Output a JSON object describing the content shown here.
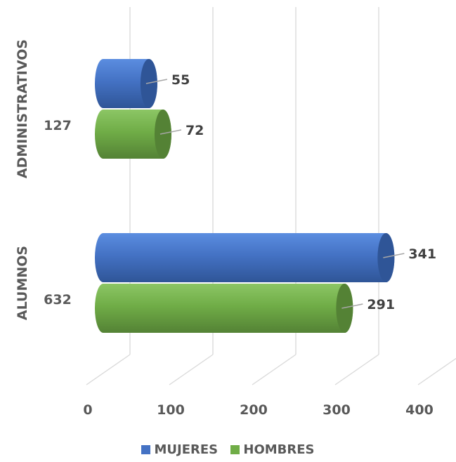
{
  "chart_data": {
    "type": "bar",
    "orientation": "horizontal",
    "style": "3d-cylinder",
    "categories": [
      "ADMINISTRATIVOS",
      "ALUMNOS"
    ],
    "totals": [
      "127",
      "632"
    ],
    "series": [
      {
        "name": "MUJERES",
        "values": [
          55,
          341
        ],
        "color": "#4472C4"
      },
      {
        "name": "HOMBRES",
        "values": [
          72,
          291
        ],
        "color": "#70AD47"
      }
    ],
    "xlim": [
      0,
      400
    ],
    "xticks": [
      0,
      100,
      200,
      300,
      400
    ],
    "grid": true,
    "legend_position": "bottom"
  }
}
